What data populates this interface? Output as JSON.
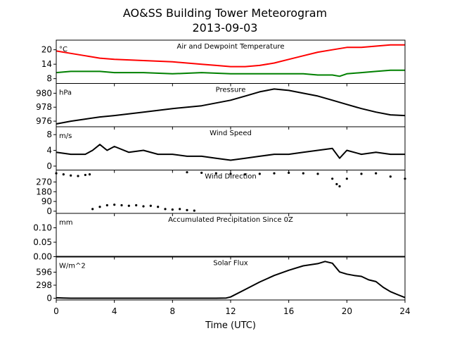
{
  "figure": {
    "title_line1": "AO&SS Building Tower Meteorogram",
    "title_line2": "2013-09-03",
    "xlabel": "Time (UTC)"
  },
  "chart_data": [
    {
      "type": "line",
      "title": "Air and Dewpoint Temperature",
      "unit": "°C",
      "xlim": [
        0,
        24
      ],
      "ylim": [
        6,
        24
      ],
      "yticks": [
        8,
        14,
        20
      ],
      "series": [
        {
          "color": "#ff0000",
          "x": [
            0,
            1,
            2,
            3,
            4,
            6,
            8,
            10,
            11,
            12,
            13,
            14,
            15,
            16,
            17,
            18,
            19,
            20,
            21,
            22,
            23,
            24
          ],
          "y": [
            19.5,
            18.5,
            17.5,
            16.5,
            16,
            15.5,
            15,
            14,
            13.5,
            13,
            13,
            13.5,
            14.5,
            16,
            17.5,
            19,
            20,
            21,
            21,
            21.5,
            22,
            22
          ]
        },
        {
          "color": "#008000",
          "x": [
            0,
            1,
            2,
            3,
            4,
            6,
            8,
            10,
            12,
            14,
            16,
            17,
            18,
            19,
            19.5,
            20,
            21,
            22,
            23,
            24
          ],
          "y": [
            10.5,
            11,
            11,
            11,
            10.5,
            10.5,
            10,
            10.5,
            10,
            10,
            10,
            10,
            9.5,
            9.5,
            9,
            10,
            10.5,
            11,
            11.5,
            11.5
          ]
        }
      ]
    },
    {
      "type": "line",
      "title": "Pressure",
      "unit": "hPa",
      "xlim": [
        0,
        24
      ],
      "ylim": [
        975.2,
        981.4
      ],
      "yticks": [
        976,
        978,
        980
      ],
      "series": [
        {
          "color": "#000000",
          "x": [
            0,
            1,
            2,
            3,
            4,
            6,
            8,
            10,
            12,
            13,
            14,
            15,
            16,
            17,
            18,
            19,
            20,
            21,
            22,
            23,
            24
          ],
          "y": [
            975.6,
            976,
            976.3,
            976.6,
            976.8,
            977.3,
            977.8,
            978.2,
            979,
            979.6,
            980.2,
            980.6,
            980.4,
            980,
            979.6,
            979,
            978.4,
            977.8,
            977.3,
            976.9,
            976.8
          ]
        }
      ]
    },
    {
      "type": "line",
      "title": "Wind Speed",
      "unit": "m/s",
      "xlim": [
        0,
        24
      ],
      "ylim": [
        -1,
        10
      ],
      "yticks": [
        0,
        4,
        8
      ],
      "series": [
        {
          "color": "#000000",
          "x": [
            0,
            1,
            2,
            2.5,
            3,
            3.5,
            4,
            5,
            6,
            7,
            8,
            9,
            10,
            11,
            12,
            13,
            14,
            15,
            16,
            17,
            18,
            19,
            19.5,
            20,
            21,
            22,
            23,
            24
          ],
          "y": [
            3.5,
            3,
            3,
            4,
            5.5,
            4,
            5,
            3.5,
            4,
            3,
            3,
            2.5,
            2.5,
            2,
            1.5,
            2,
            2.5,
            3,
            3,
            3.5,
            4,
            4.5,
            2,
            4,
            3,
            3.5,
            3,
            3
          ]
        }
      ]
    },
    {
      "type": "scatter",
      "title": "Wind Direction",
      "unit": "",
      "xlim": [
        0,
        24
      ],
      "ylim": [
        -20,
        380
      ],
      "yticks": [
        0,
        90,
        180,
        270
      ],
      "series": [
        {
          "color": "#000000",
          "x": [
            0,
            0.5,
            1,
            1.5,
            2,
            2.3,
            2.5,
            3,
            3.5,
            4,
            4.5,
            5,
            5.5,
            6,
            6.5,
            7,
            7.5,
            8,
            8.5,
            9,
            9.5,
            9,
            10,
            11,
            12,
            13,
            14,
            15,
            16,
            17,
            18,
            19,
            19.3,
            19.5,
            20,
            21,
            22,
            23,
            24
          ],
          "y": [
            350,
            340,
            330,
            325,
            335,
            340,
            20,
            40,
            55,
            60,
            55,
            50,
            55,
            45,
            50,
            40,
            20,
            15,
            20,
            10,
            5,
            360,
            355,
            350,
            345,
            340,
            345,
            350,
            355,
            350,
            345,
            300,
            250,
            230,
            300,
            345,
            350,
            320,
            300
          ]
        }
      ]
    },
    {
      "type": "line",
      "title": "Accumulated Precipitation Since 0Z",
      "unit": "mm",
      "xlim": [
        0,
        24
      ],
      "ylim": [
        0,
        0.15
      ],
      "yticks": [
        0.0,
        0.05,
        0.1
      ],
      "ytick_labels": [
        "0.00",
        "0.05",
        "0.10"
      ],
      "series": [
        {
          "color": "#000000",
          "x": [
            0,
            24
          ],
          "y": [
            0,
            0
          ]
        }
      ]
    },
    {
      "type": "line",
      "title": "Solar Flux",
      "unit": "W/m^2",
      "xlim": [
        0,
        24
      ],
      "ylim": [
        -40,
        950
      ],
      "yticks": [
        0,
        298,
        596
      ],
      "series": [
        {
          "color": "#000000",
          "x": [
            0,
            0.5,
            1,
            2,
            4,
            6,
            8,
            10,
            11,
            11.7,
            12,
            13,
            14,
            15,
            16,
            17,
            18,
            18.5,
            19,
            19.5,
            20,
            20.5,
            21,
            21.5,
            22,
            22.5,
            23,
            23.5,
            24
          ],
          "y": [
            10,
            5,
            0,
            0,
            0,
            0,
            0,
            0,
            0,
            5,
            30,
            200,
            370,
            520,
            640,
            740,
            790,
            840,
            800,
            600,
            550,
            520,
            500,
            420,
            380,
            250,
            150,
            80,
            15
          ]
        }
      ]
    }
  ],
  "x_ticks": [
    {
      "value": 0,
      "label": "0"
    },
    {
      "value": 4,
      "label": "4"
    },
    {
      "value": 8,
      "label": "8"
    },
    {
      "value": 12,
      "label": "12"
    },
    {
      "value": 16,
      "label": "16"
    },
    {
      "value": 20,
      "label": "20"
    },
    {
      "value": 24,
      "label": "24"
    }
  ]
}
